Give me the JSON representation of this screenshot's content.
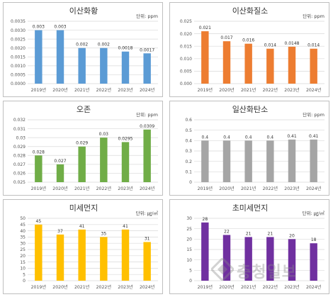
{
  "chart_data": [
    {
      "type": "bar",
      "title": "이산화황",
      "unit": "단위: ppm",
      "categories": [
        "2019년",
        "2020년",
        "2021년",
        "2022년",
        "2023년",
        "2024년"
      ],
      "values": [
        0.003,
        0.003,
        0.002,
        0.002,
        0.0018,
        0.0017
      ],
      "value_labels": [
        "0.003",
        "0.003",
        "0.002",
        "0.002",
        "0.0018",
        "0.0017"
      ],
      "ylim": [
        0,
        0.0035
      ],
      "yticks": [
        0,
        0.0005,
        0.001,
        0.0015,
        0.002,
        0.0025,
        0.003,
        0.0035
      ],
      "ytick_labels": [
        "0.0000",
        "0.0005",
        "0.0010",
        "0.0015",
        "0.0020",
        "0.0025",
        "0.0030",
        "0.0035"
      ],
      "color": "#5b9bd5",
      "grid": true
    },
    {
      "type": "bar",
      "title": "이산화질소",
      "unit": "단위: ppm",
      "categories": [
        "2019년",
        "2020년",
        "2021년",
        "2022년",
        "2023년",
        "2024년"
      ],
      "values": [
        0.021,
        0.017,
        0.016,
        0.014,
        0.0148,
        0.014
      ],
      "value_labels": [
        "0.021",
        "0.017",
        "0.016",
        "0.014",
        "0.0148",
        "0.014"
      ],
      "ylim": [
        0,
        0.025
      ],
      "yticks": [
        0,
        0.005,
        0.01,
        0.015,
        0.02,
        0.025
      ],
      "ytick_labels": [
        "0.000",
        "0.005",
        "0.010",
        "0.015",
        "0.020",
        "0.025"
      ],
      "color": "#ed7d31",
      "grid": true
    },
    {
      "type": "bar",
      "title": "오존",
      "unit": "단위: ppm",
      "categories": [
        "2019년",
        "2020년",
        "2021년",
        "2022년",
        "2023년",
        "2024년"
      ],
      "values": [
        0.028,
        0.027,
        0.029,
        0.03,
        0.0295,
        0.0309
      ],
      "value_labels": [
        "0.028",
        "0.027",
        "0.029",
        "0.03",
        "0.0295",
        "0.0309"
      ],
      "ylim": [
        0.025,
        0.032
      ],
      "yticks": [
        0.025,
        0.026,
        0.027,
        0.028,
        0.029,
        0.03,
        0.031,
        0.032
      ],
      "ytick_labels": [
        "0.025",
        "0.026",
        "0.027",
        "0.028",
        "0.029",
        "0.03",
        "0.031",
        "0.032"
      ],
      "color": "#70ad47",
      "grid": true
    },
    {
      "type": "bar",
      "title": "일산화탄소",
      "unit": "단위: ppm",
      "categories": [
        "2019년",
        "2020년",
        "2021년",
        "2022년",
        "2023년",
        "2024년"
      ],
      "values": [
        0.4,
        0.4,
        0.4,
        0.4,
        0.41,
        0.41
      ],
      "value_labels": [
        "0.4",
        "0.4",
        "0.4",
        "0.4",
        "0.41",
        "0.41"
      ],
      "ylim": [
        0,
        0.6
      ],
      "yticks": [
        0,
        0.1,
        0.2,
        0.3,
        0.4,
        0.5,
        0.6
      ],
      "ytick_labels": [
        "0",
        "0.1",
        "0.2",
        "0.3",
        "0.4",
        "0.5",
        "0.6"
      ],
      "color": "#a5a5a5",
      "grid": true
    },
    {
      "type": "bar",
      "title": "미세먼지",
      "unit": "단위: ㎍/㎥",
      "categories": [
        "2019년",
        "2020년",
        "2021년",
        "2022년",
        "2023년",
        "2024년"
      ],
      "values": [
        45,
        37,
        41,
        35,
        41,
        31
      ],
      "value_labels": [
        "45",
        "37",
        "41",
        "35",
        "41",
        "31"
      ],
      "ylim": [
        0,
        50
      ],
      "yticks": [
        0,
        5,
        10,
        15,
        20,
        25,
        30,
        35,
        40,
        45,
        50
      ],
      "ytick_labels": [
        "0",
        "5",
        "10",
        "15",
        "20",
        "25",
        "30",
        "35",
        "40",
        "45",
        "50"
      ],
      "color": "#ffc000",
      "grid": true
    },
    {
      "type": "bar",
      "title": "초미세먼지",
      "unit": "단위: ㎍/㎥",
      "categories": [
        "2019년",
        "2020년",
        "2021년",
        "2022년",
        "2023년",
        "2024년"
      ],
      "values": [
        28,
        22,
        21,
        21,
        20,
        18
      ],
      "value_labels": [
        "28",
        "22",
        "21",
        "21",
        "20",
        "18"
      ],
      "ylim": [
        0,
        30
      ],
      "yticks": [
        0,
        5,
        10,
        15,
        20,
        25,
        30
      ],
      "ytick_labels": [
        "0",
        "5",
        "10",
        "15",
        "20",
        "25",
        "30"
      ],
      "color": "#7030a0",
      "grid": true
    }
  ],
  "watermark": {
    "text": "충청일보"
  }
}
